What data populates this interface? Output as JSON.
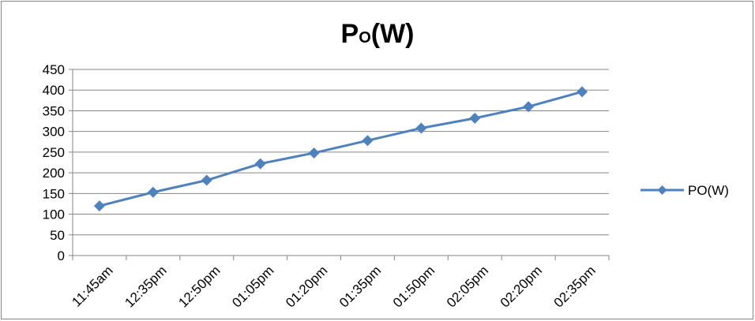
{
  "chart_data": {
    "type": "line",
    "title_main": "P",
    "title_sub": "O",
    "title_tail": "(W)",
    "categories": [
      "11:45am",
      "12:35pm",
      "12:50pm",
      "01:05pm",
      "01:20pm",
      "01:35pm",
      "01:50pm",
      "02:05pm",
      "02:20pm",
      "02:35pm"
    ],
    "series": [
      {
        "name": "PO(W)",
        "values": [
          120,
          153,
          182,
          222,
          248,
          278,
          308,
          332,
          360,
          396
        ],
        "color": "#4F81BD"
      }
    ],
    "ylim": [
      0,
      450
    ],
    "yticks": [
      0,
      50,
      100,
      150,
      200,
      250,
      300,
      350,
      400,
      450
    ],
    "grid": true,
    "legend_position": "right",
    "marker": "diamond"
  }
}
